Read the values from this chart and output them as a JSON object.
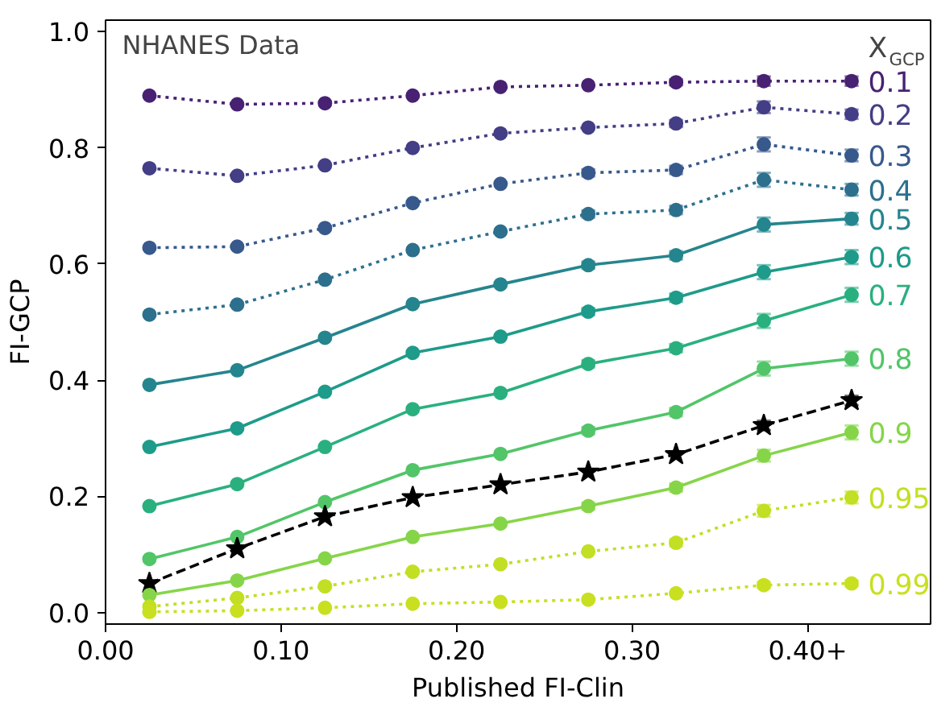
{
  "chart_data": {
    "type": "line",
    "title": "NHANES Data",
    "xlabel": "Published FI-Clin",
    "ylabel": "FI-GCP",
    "legend_title": "X$_{GCP}$",
    "x": [
      0.025,
      0.075,
      0.125,
      0.175,
      0.225,
      0.275,
      0.325,
      0.375,
      0.425
    ],
    "xlim": [
      0,
      0.47
    ],
    "xticks": [
      {
        "value": 0,
        "label": "0.00"
      },
      {
        "value": 0.1,
        "label": "0.10"
      },
      {
        "value": 0.2,
        "label": "0.20"
      },
      {
        "value": 0.3,
        "label": "0.30"
      },
      {
        "value": 0.4,
        "label": "0.40+"
      }
    ],
    "ylim": [
      -0.02,
      1.02
    ],
    "yticks": [
      {
        "value": 0,
        "label": "0.0"
      },
      {
        "value": 0.2,
        "label": "0.2"
      },
      {
        "value": 0.4,
        "label": "0.4"
      },
      {
        "value": 0.6,
        "label": "0.6"
      },
      {
        "value": 0.8,
        "label": "0.8"
      },
      {
        "value": 1,
        "label": "1.0"
      }
    ],
    "grid": false,
    "marker": "circle",
    "series": [
      {
        "name": "0.1",
        "color": "#482173",
        "line_style": "dotted",
        "values": [
          0.89,
          0.875,
          0.877,
          0.89,
          0.905,
          0.908,
          0.913,
          0.915,
          0.915
        ],
        "errors": [
          null,
          null,
          null,
          null,
          null,
          null,
          0.005,
          0.008,
          0.008
        ]
      },
      {
        "name": "0.2",
        "color": "#433e85",
        "line_style": "dotted",
        "values": [
          0.765,
          0.752,
          0.77,
          0.8,
          0.825,
          0.835,
          0.842,
          0.87,
          0.858
        ],
        "errors": [
          null,
          null,
          null,
          null,
          null,
          null,
          0.006,
          0.01,
          0.008
        ]
      },
      {
        "name": "0.3",
        "color": "#38598c",
        "line_style": "dotted",
        "values": [
          0.628,
          0.63,
          0.662,
          0.705,
          0.738,
          0.757,
          0.762,
          0.806,
          0.787
        ],
        "errors": [
          null,
          null,
          null,
          null,
          null,
          0.006,
          0.007,
          0.012,
          0.01
        ]
      },
      {
        "name": "0.4",
        "color": "#2d708e",
        "line_style": "dotted",
        "values": [
          0.513,
          0.53,
          0.573,
          0.624,
          0.656,
          0.686,
          0.693,
          0.745,
          0.728
        ],
        "errors": [
          null,
          null,
          null,
          null,
          null,
          0.006,
          0.007,
          0.012,
          0.01
        ]
      },
      {
        "name": "0.5",
        "color": "#25858e",
        "line_style": "solid",
        "values": [
          0.392,
          0.417,
          0.473,
          0.531,
          0.565,
          0.598,
          0.615,
          0.668,
          0.678
        ],
        "errors": [
          null,
          null,
          null,
          null,
          null,
          0.006,
          0.007,
          0.012,
          0.01
        ]
      },
      {
        "name": "0.6",
        "color": "#1e9b8a",
        "line_style": "solid",
        "values": [
          0.285,
          0.317,
          0.38,
          0.447,
          0.475,
          0.518,
          0.542,
          0.586,
          0.612
        ],
        "errors": [
          null,
          null,
          null,
          null,
          null,
          0.006,
          0.007,
          0.012,
          0.012
        ]
      },
      {
        "name": "0.7",
        "color": "#2ab07f",
        "line_style": "solid",
        "values": [
          0.183,
          0.221,
          0.285,
          0.35,
          0.378,
          0.428,
          0.455,
          0.502,
          0.547
        ],
        "errors": [
          null,
          null,
          null,
          null,
          null,
          0.006,
          0.007,
          0.012,
          0.012
        ]
      },
      {
        "name": "0.8",
        "color": "#52c569",
        "line_style": "solid",
        "values": [
          0.092,
          0.13,
          0.19,
          0.245,
          0.273,
          0.313,
          0.345,
          0.42,
          0.437
        ],
        "errors": [
          null,
          null,
          null,
          null,
          null,
          0.006,
          0.007,
          0.012,
          0.012
        ]
      },
      {
        "color": "#000000",
        "line_style": "dashed",
        "marker": "star",
        "values": [
          0.05,
          0.11,
          0.165,
          0.198,
          0.22,
          0.242,
          0.272,
          0.322,
          0.365
        ],
        "errors": [
          null,
          null,
          null,
          null,
          null,
          null,
          null,
          0.008,
          0.008
        ]
      },
      {
        "name": "0.9",
        "color": "#86d549",
        "line_style": "solid",
        "values": [
          0.03,
          0.055,
          0.093,
          0.13,
          0.153,
          0.183,
          0.215,
          0.27,
          0.31
        ],
        "errors": [
          null,
          null,
          null,
          null,
          null,
          0.006,
          0.007,
          0.01,
          0.012
        ]
      },
      {
        "name": "0.95",
        "color": "#c2df23",
        "line_style": "dotted",
        "values": [
          0.01,
          0.025,
          0.045,
          0.07,
          0.083,
          0.105,
          0.12,
          0.175,
          0.198
        ],
        "errors": [
          null,
          null,
          null,
          null,
          null,
          null,
          0.006,
          0.01,
          0.01
        ]
      },
      {
        "name": "0.99",
        "color": "#c8e020",
        "line_style": "dotted",
        "values": [
          0.001,
          0.003,
          0.008,
          0.015,
          0.018,
          0.022,
          0.033,
          0.047,
          0.05
        ],
        "errors": [
          null,
          null,
          null,
          null,
          null,
          null,
          null,
          0.005,
          0.005
        ]
      }
    ]
  }
}
